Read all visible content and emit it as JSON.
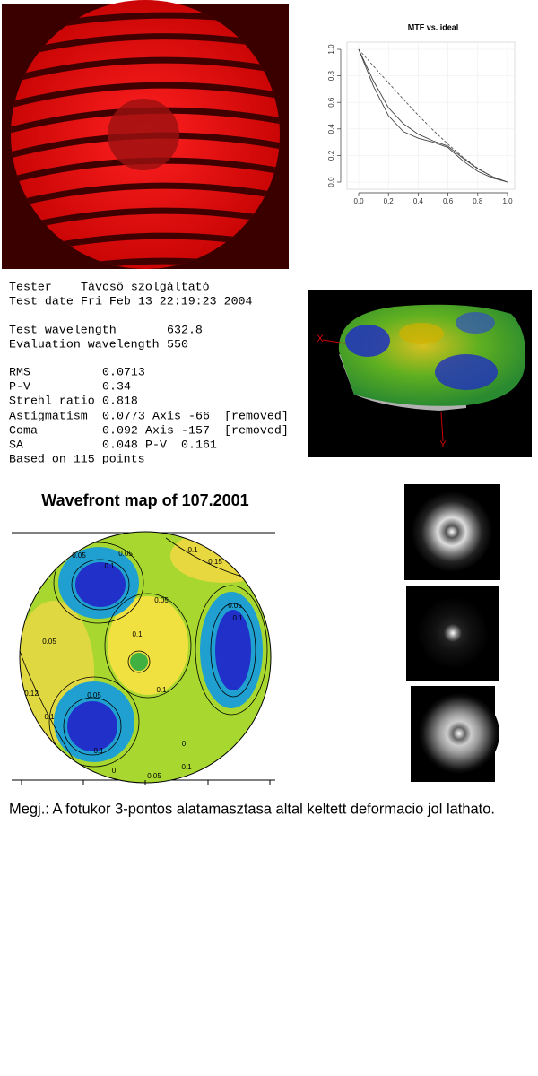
{
  "chart_data": {
    "type": "line",
    "title": "MTF vs. ideal",
    "x": [
      0,
      0.1,
      0.2,
      0.3,
      0.4,
      0.5,
      0.6,
      0.7,
      0.8,
      0.9,
      1
    ],
    "series": [
      {
        "color": "#555555",
        "dashed": true,
        "values": [
          1,
          0.873,
          0.747,
          0.624,
          0.504,
          0.391,
          0.285,
          0.188,
          0.104,
          0.037,
          0
        ]
      },
      {
        "color": "#444444",
        "values": [
          1,
          0.72,
          0.5,
          0.38,
          0.33,
          0.3,
          0.26,
          0.16,
          0.08,
          0.03,
          0
        ]
      },
      {
        "color": "#444444",
        "values": [
          1,
          0.76,
          0.56,
          0.44,
          0.36,
          0.31,
          0.27,
          0.18,
          0.1,
          0.04,
          0
        ]
      }
    ],
    "xlim": [
      0,
      1
    ],
    "ylim": [
      0,
      1
    ],
    "xticks": [
      {
        "value": 0,
        "label": "0.0"
      },
      0.2,
      0.4,
      0.6,
      0.8,
      {
        "value": 1,
        "label": "1.0"
      }
    ],
    "yticks": [
      {
        "value": 0,
        "label": "0.0"
      },
      0.2,
      0.4,
      0.6,
      0.8,
      {
        "value": 1,
        "label": "1.0"
      }
    ]
  },
  "report": {
    "lines": [
      [
        "Tester",
        "Távcső szolgáltató"
      ],
      [
        "Test date",
        "Fri Feb 13 22:19:23 2004"
      ],
      [
        "Test wavelength",
        "632.8"
      ],
      [
        "Evaluation wavelength",
        "550"
      ],
      [
        "RMS",
        "0.0713"
      ],
      [
        "P-V",
        "0.34"
      ],
      [
        "Strehl ratio",
        "0.818"
      ],
      [
        "Astigmatism",
        "0.0773",
        "Axis",
        "-66",
        "[removed]"
      ],
      [
        "Coma",
        "0.092",
        "Axis",
        "-157",
        "[removed]"
      ],
      [
        "SA",
        "0.048",
        "P-V",
        "0.161"
      ],
      [
        "Based on 115 points"
      ]
    ]
  },
  "surface": {
    "axis_labels": [
      "X",
      "Y"
    ]
  },
  "wavefront": {
    "title": "Wavefront map of 107.2001",
    "contour_labels": [
      "0.05",
      "0.05",
      "0.1",
      "0.1",
      "0.15",
      "0.05",
      "0.05",
      "0.1",
      "0.05",
      "0.1",
      "0.1",
      "0.12",
      "0.1",
      "0.05",
      "0",
      "0.1",
      "0",
      "0.05",
      "0.1"
    ]
  },
  "caption": "Megj.: A fotukor 3-pontos alatamasztasa altal keltett deformacio jol lathato."
}
